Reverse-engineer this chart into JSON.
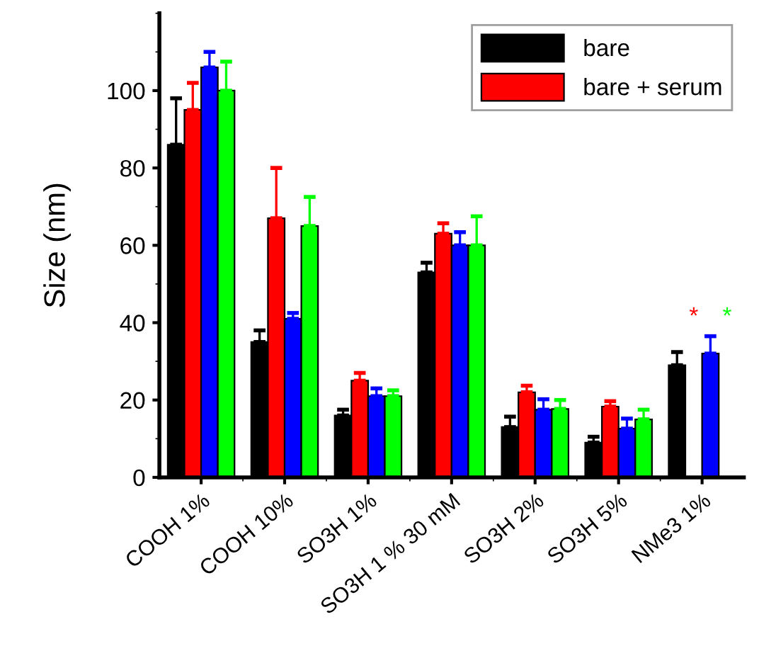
{
  "chart_data": {
    "type": "bar",
    "ylabel": "Size (nm)",
    "categories": [
      "COOH 1%",
      "COOH 10%",
      "SO3H 1%",
      "SO3H 1 % 30 mM",
      "SO3H 2%",
      "SO3H 5%",
      "NMe3 1%"
    ],
    "series": [
      {
        "name": "bare",
        "color": "#000000",
        "values": [
          86,
          35,
          16,
          53,
          13,
          9,
          29
        ],
        "errors": [
          12,
          3,
          1.5,
          2.5,
          2.7,
          1.5,
          3.4
        ]
      },
      {
        "name": "bare + serum",
        "color": "#ff0000",
        "values": [
          95,
          67,
          25,
          63,
          22,
          18.3,
          null
        ],
        "errors": [
          7,
          13,
          2,
          2.7,
          1.7,
          1.4,
          null
        ]
      },
      {
        "color": "#0000ff",
        "values": [
          106,
          41,
          21,
          60,
          17.5,
          12.6,
          32
        ],
        "errors": [
          4,
          1.5,
          2,
          3.4,
          2.7,
          2.6,
          4.5
        ]
      },
      {
        "color": "#00ff00",
        "values": [
          100,
          65,
          21,
          60,
          17.7,
          15,
          null
        ],
        "errors": [
          7.5,
          7.5,
          1.5,
          7.5,
          2.3,
          2.5,
          null
        ]
      }
    ],
    "annotations": [
      "*",
      "*"
    ],
    "ylim": [
      0,
      120
    ],
    "yticks": [
      0,
      20,
      40,
      60,
      80,
      100
    ],
    "grid": false,
    "legend": "top right"
  }
}
